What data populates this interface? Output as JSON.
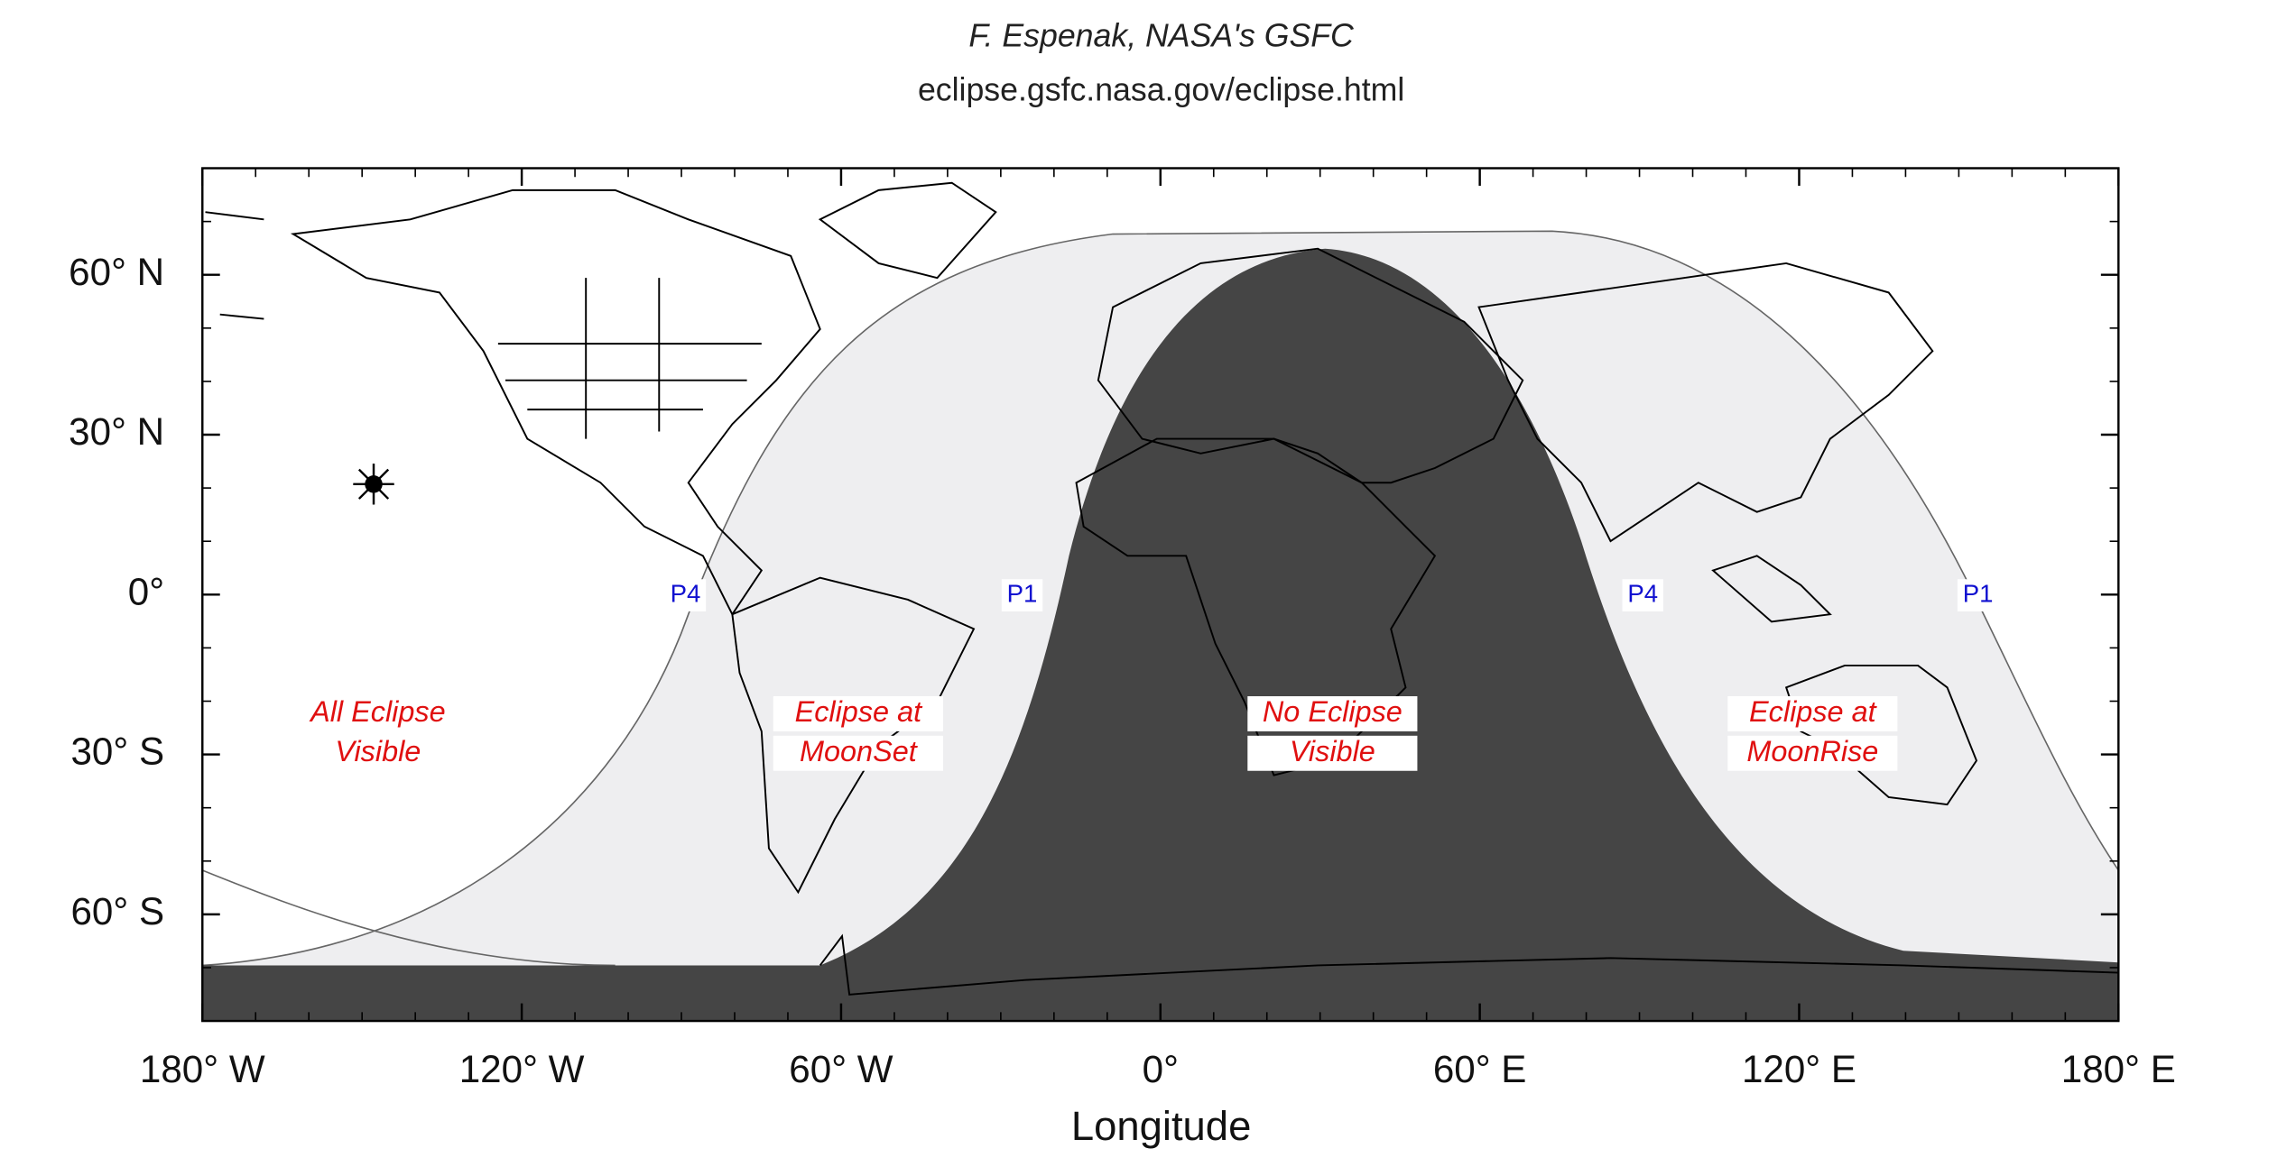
{
  "header": {
    "author": "F. Espenak, NASA's GSFC",
    "url": "eclipse.gsfc.nasa.gov/eclipse.html"
  },
  "map": {
    "xlim": [
      -180,
      180
    ],
    "ylim": [
      -80,
      80
    ],
    "xticks": [
      {
        "value": -180,
        "label": "180° W"
      },
      {
        "value": -120,
        "label": "120° W"
      },
      {
        "value": -60,
        "label": "60° W"
      },
      {
        "value": 0,
        "label": "0°"
      },
      {
        "value": 60,
        "label": "60° E"
      },
      {
        "value": 120,
        "label": "120° E"
      },
      {
        "value": 180,
        "label": "180° E"
      }
    ],
    "yticks": [
      {
        "value": 60,
        "label": "60° N"
      },
      {
        "value": 30,
        "label": "30° N"
      },
      {
        "value": 0,
        "label": "0°"
      },
      {
        "value": -30,
        "label": "30° S"
      },
      {
        "value": -60,
        "label": "60° S"
      }
    ],
    "x_label": "Longitude",
    "regions": [
      {
        "lines": [
          "All Eclipse",
          "Visible"
        ]
      },
      {
        "lines": [
          "Eclipse at",
          "MoonSet"
        ]
      },
      {
        "lines": [
          "No Eclipse",
          "Visible"
        ]
      },
      {
        "lines": [
          "Eclipse at",
          "MoonRise"
        ]
      }
    ],
    "contacts": [
      "P4",
      "P1",
      "P4",
      "P1"
    ]
  }
}
